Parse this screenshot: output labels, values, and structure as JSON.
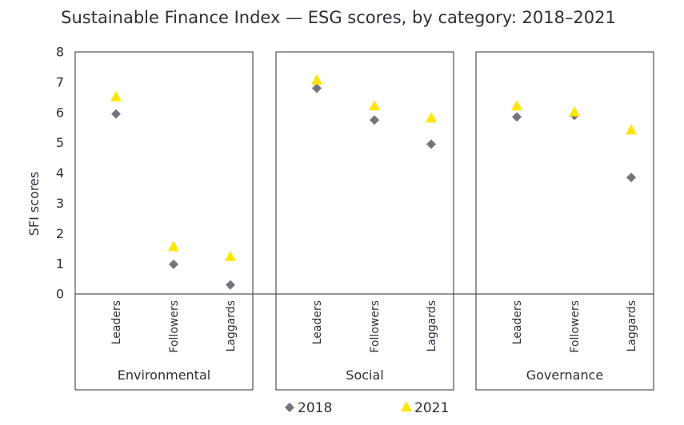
{
  "chart_data": {
    "type": "scatter",
    "title": "Sustainable Finance Index — ESG scores, by category: 2018–2021",
    "ylabel": "SFI scores",
    "xlabel": "",
    "ylim": [
      0,
      8
    ],
    "yticks": [
      "0",
      "1",
      "2",
      "3",
      "4",
      "5",
      "6",
      "7",
      "8"
    ],
    "categories": [
      "Leaders",
      "Followers",
      "Laggards"
    ],
    "legend_position": "bottom",
    "panels": [
      {
        "name": "Environmental",
        "series": [
          {
            "name": "2018",
            "values": [
              5.95,
              0.98,
              0.3
            ]
          },
          {
            "name": "2021",
            "values": [
              6.5,
              1.55,
              1.22
            ]
          }
        ]
      },
      {
        "name": "Social",
        "series": [
          {
            "name": "2018",
            "values": [
              6.8,
              5.75,
              4.95
            ]
          },
          {
            "name": "2021",
            "values": [
              7.05,
              6.2,
              5.8
            ]
          }
        ]
      },
      {
        "name": "Governance",
        "series": [
          {
            "name": "2018",
            "values": [
              5.85,
              5.9,
              3.85
            ]
          },
          {
            "name": "2021",
            "values": [
              6.2,
              6.0,
              5.4
            ]
          }
        ]
      }
    ],
    "series_styles": [
      {
        "name": "2018",
        "marker": "diamond",
        "color": "#747480"
      },
      {
        "name": "2021",
        "marker": "triangle",
        "color": "#ffe600"
      }
    ]
  }
}
